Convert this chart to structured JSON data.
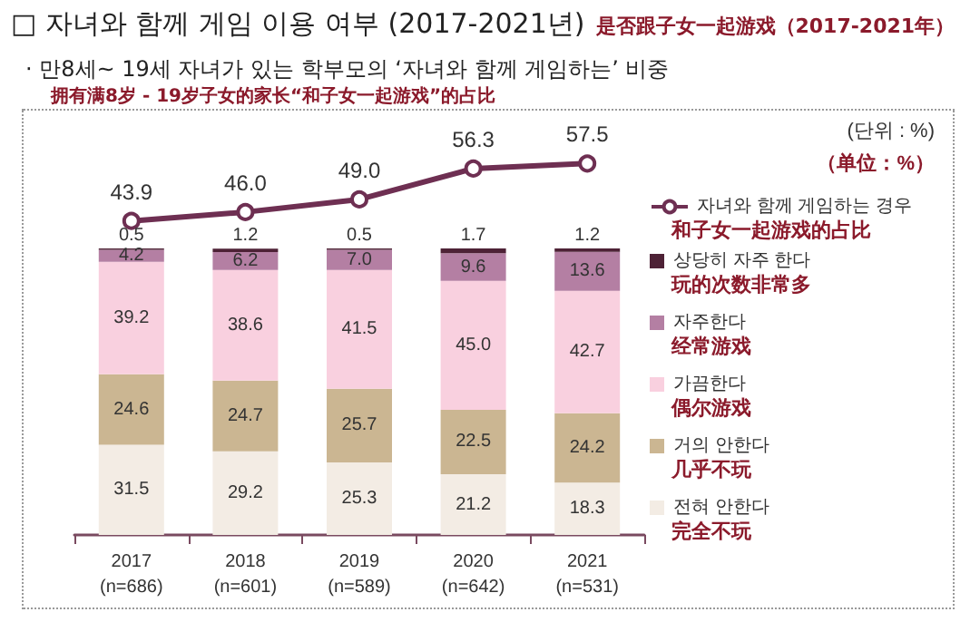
{
  "chart_data": [
    {
      "type": "line",
      "title": "□ 자녀와 함께 게임 이용 여부 (2017-2021년)",
      "subtitle": "· 만8세~ 19세 자녀가 있는 학부모의 ‘자녀와 함께 게임하는’ 비중",
      "categories": [
        null,
        null,
        null,
        null,
        null
      ],
      "tick_labels": false,
      "legend": "right",
      "marker": "circle",
      "series": [
        {
          "name": "자녀와 함께 게임하는 경우",
          "color": "#6e2f52",
          "values": [
            43.9,
            46.0,
            49.0,
            56.3,
            57.5
          ],
          "value_labels": [
            "43.9",
            "46.0",
            "49.0",
            "56.3",
            "57.5"
          ]
        }
      ],
      "annotations": [
        "是否跟子女一起游戏（2017-2021年）",
        "拥有满8岁 - 19岁子女的家长“和子女一起游戏”的占比",
        "(단위 : %)",
        "（单位：%）",
        "和子女一起游戏的占比"
      ]
    },
    {
      "type": "bar",
      "categories": [
        "2017\n(n=686)",
        "2018\n(n=601)",
        "2019\n(n=589)",
        "2020\n(n=642)",
        "2021\n(n=531)"
      ],
      "stacked": true,
      "legend": "right",
      "grid": false,
      "series": [
        {
          "name": "전혀 안한다",
          "color": "#f3ece4",
          "values": [
            31.5,
            29.2,
            25.3,
            21.2,
            18.3
          ],
          "value_labels": [
            "31.5",
            "29.2",
            "25.3",
            "21.2",
            "18.3"
          ]
        },
        {
          "name": "거의 안한다",
          "color": "#cbb692",
          "values": [
            24.6,
            24.7,
            25.7,
            22.5,
            24.2
          ],
          "value_labels": [
            "24.6",
            "24.7",
            "25.7",
            "22.5",
            "24.2"
          ]
        },
        {
          "name": "가끔한다",
          "color": "#f9d0df",
          "values": [
            39.2,
            38.6,
            41.5,
            45.0,
            42.7
          ],
          "value_labels": [
            "39.2",
            "38.6",
            "41.5",
            "45.0",
            "42.7"
          ]
        },
        {
          "name": "자주한다",
          "color": "#b47fa3",
          "values": [
            4.2,
            6.2,
            7.0,
            9.6,
            13.6
          ],
          "value_labels": [
            "4.2",
            "6.2",
            "7.0",
            "9.6",
            "13.6"
          ]
        },
        {
          "name": "상당히 자주 한다",
          "color": "#4e2236",
          "values": [
            0.5,
            1.2,
            0.5,
            1.7,
            1.2
          ],
          "value_labels": [
            "0.5",
            "1.2",
            "0.5",
            "1.7",
            "1.2"
          ]
        }
      ],
      "annotations": [
        "玩的次数非常多",
        "经常游戏",
        "偶尔游戏",
        "几乎不玩",
        "完全不玩"
      ]
    }
  ]
}
